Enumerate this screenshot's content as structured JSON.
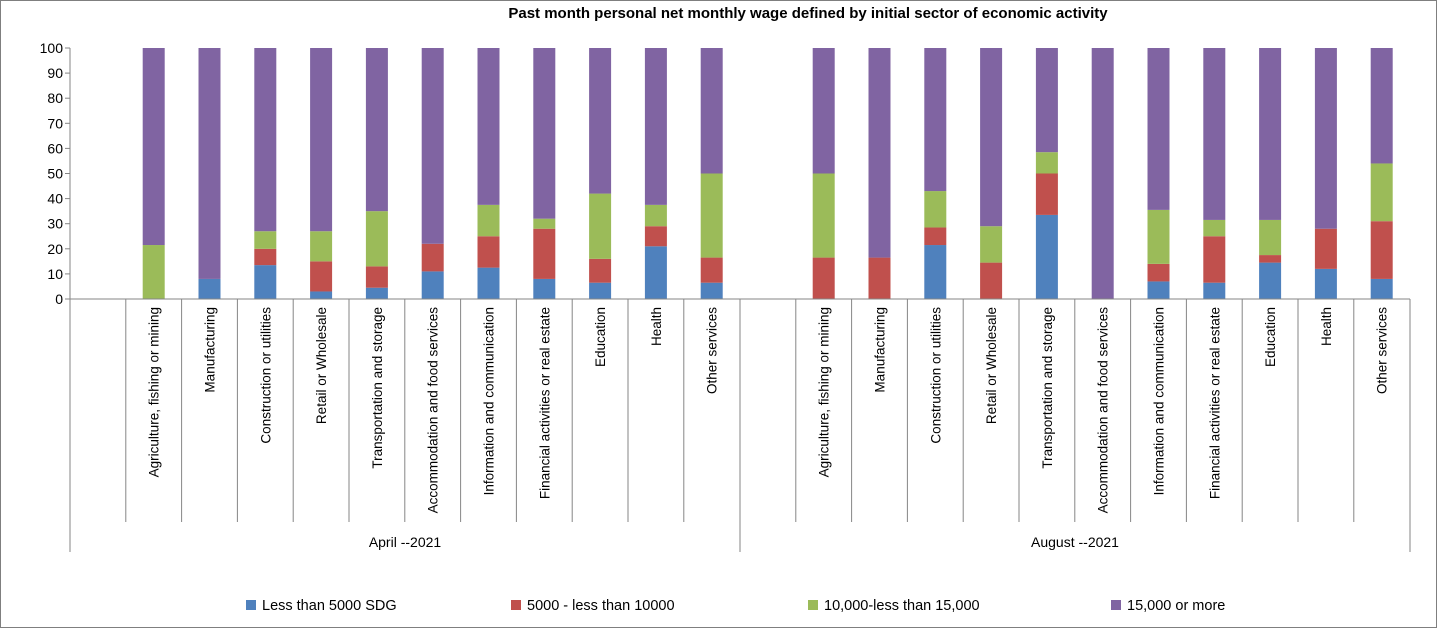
{
  "chart_data": {
    "type": "bar",
    "stacked": true,
    "title": "Past month personal net monthly wage defined by initial sector of economic activity",
    "ylim": [
      0,
      100
    ],
    "yticks": [
      0,
      10,
      20,
      30,
      40,
      50,
      60,
      70,
      80,
      90,
      100
    ],
    "grid": false,
    "legend_position": "bottom",
    "categories": [
      "Agriculture, fishing or mining",
      "Manufacturing",
      "Construction or utilities",
      "Retail or Wholesale",
      "Transportation and storage",
      "Accommodation and food services",
      "Information and communication",
      "Financial activities or real estate",
      "Education",
      "Health",
      "Other services"
    ],
    "groups": [
      {
        "label": "April --2021",
        "series": [
          {
            "name": "Less than 5000 SDG",
            "values": [
              0,
              8,
              13.5,
              3,
              4.5,
              11,
              12.5,
              8,
              6.5,
              21,
              6.5
            ]
          },
          {
            "name": "5000 - less than 10000",
            "values": [
              0,
              0,
              6.5,
              12,
              8.5,
              11,
              12.5,
              20,
              9.5,
              8,
              10
            ]
          },
          {
            "name": "10,000-less than 15,000",
            "values": [
              21.5,
              0,
              7,
              12,
              22,
              0,
              12.5,
              4,
              26,
              8.5,
              33.5
            ]
          },
          {
            "name": "15,000 or more",
            "values": [
              78.5,
              92,
              73,
              73,
              65,
              78,
              62.5,
              68,
              58,
              62.5,
              50
            ]
          }
        ]
      },
      {
        "label": "August --2021",
        "series": [
          {
            "name": "Less than 5000 SDG",
            "values": [
              0,
              0,
              21.5,
              0,
              33.5,
              0,
              7,
              6.5,
              14.5,
              12,
              8
            ]
          },
          {
            "name": "5000 - less than 10000",
            "values": [
              16.5,
              16.5,
              7,
              14.5,
              16.5,
              0,
              7,
              18.5,
              3,
              16,
              23
            ]
          },
          {
            "name": "10,000-less than 15,000",
            "values": [
              33.5,
              0,
              14.5,
              14.5,
              8.5,
              0,
              21.5,
              6.5,
              14,
              0,
              23
            ]
          },
          {
            "name": "15,000 or more",
            "values": [
              50,
              83.5,
              57,
              71,
              41.5,
              100,
              64.5,
              68.5,
              68.5,
              72,
              46
            ]
          }
        ]
      }
    ],
    "colors": [
      "#4f81bd",
      "#c0504d",
      "#9bbb59",
      "#8064a2"
    ]
  }
}
